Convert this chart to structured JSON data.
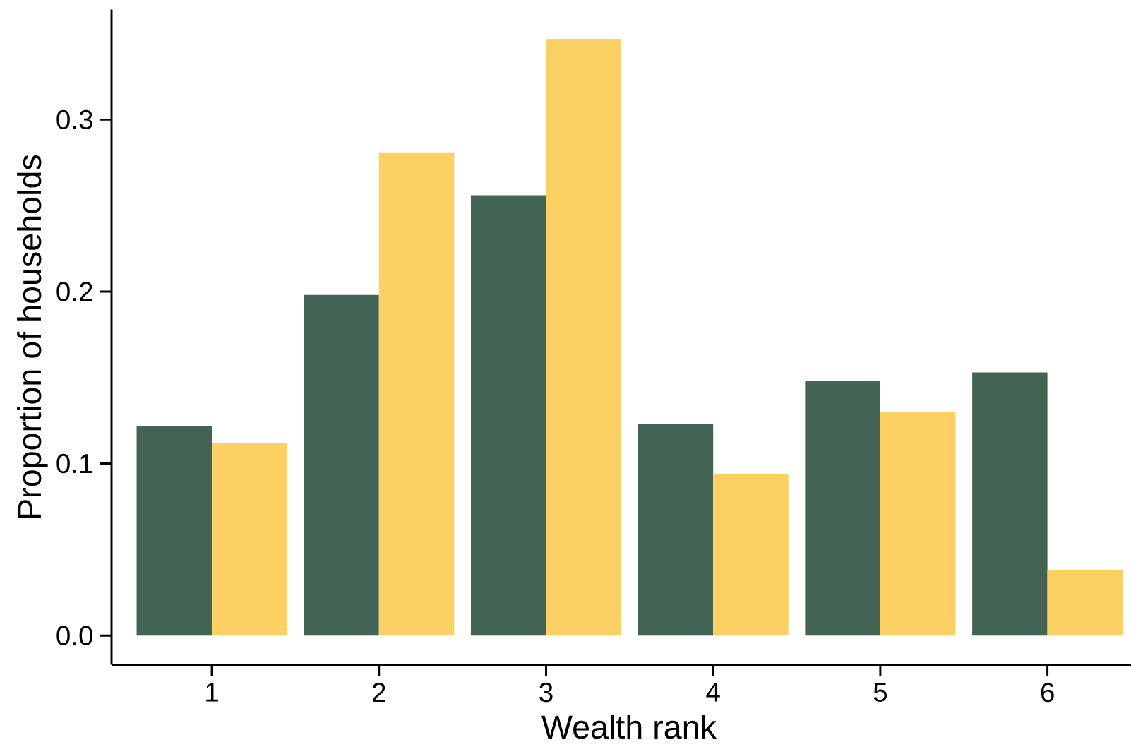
{
  "chart_data": {
    "type": "bar",
    "xlabel": "Wealth rank",
    "ylabel": "Proportion of households",
    "categories": [
      "1",
      "2",
      "3",
      "4",
      "5",
      "6"
    ],
    "series": [
      {
        "color": "#436454",
        "values": [
          0.122,
          0.198,
          0.256,
          0.123,
          0.148,
          0.153
        ]
      },
      {
        "color": "#fcd062",
        "values": [
          0.112,
          0.281,
          0.347,
          0.094,
          0.13,
          0.038
        ]
      }
    ],
    "ylim": [
      -0.017,
      0.364
    ],
    "yticks": [
      {
        "value": 0,
        "label": "0.0"
      },
      0.1,
      0.2,
      0.3
    ]
  }
}
